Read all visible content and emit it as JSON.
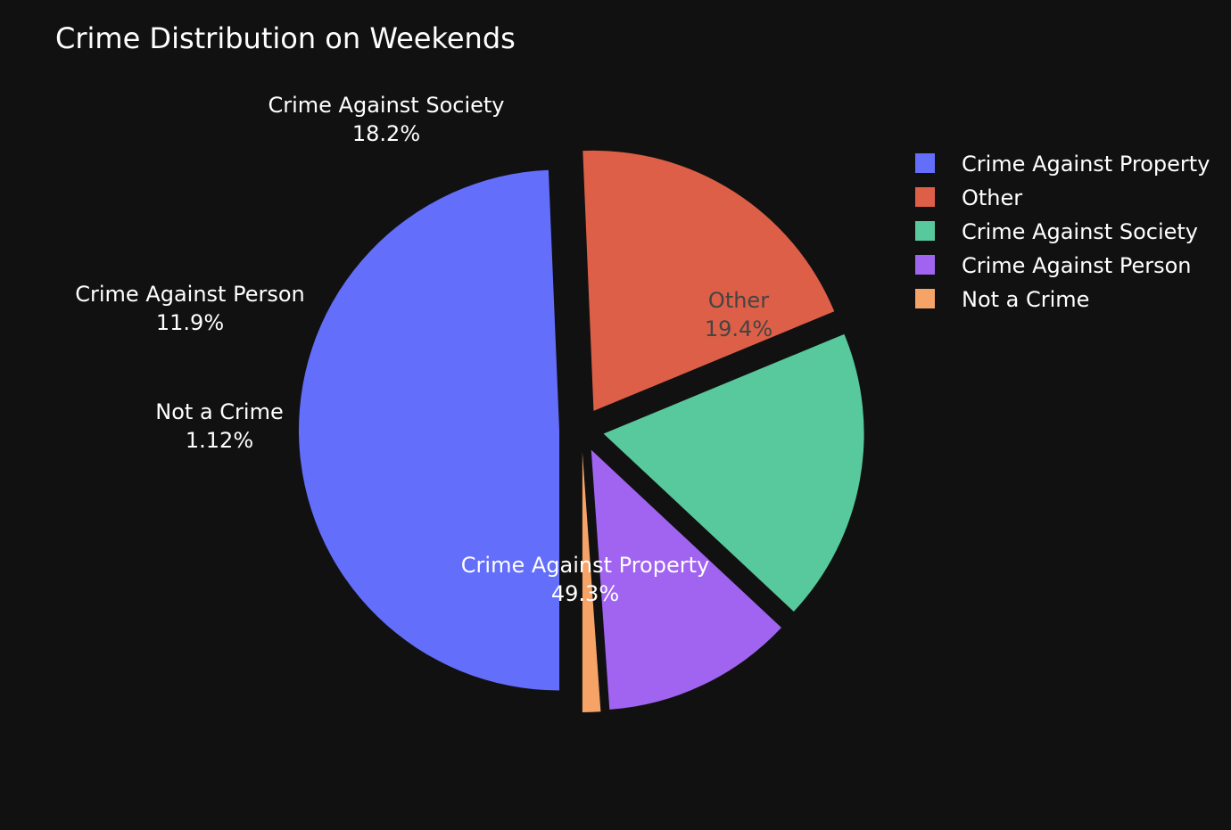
{
  "chart_data": {
    "type": "pie",
    "title": "Crime Distribution on Weekends",
    "slices": [
      {
        "label": "Crime Against Property",
        "percent_text": "49.3%",
        "value": 49.3,
        "color": "#636efa",
        "text_color": "#ffffff",
        "text_inside": true
      },
      {
        "label": "Other",
        "percent_text": "19.4%",
        "value": 19.4,
        "color": "#dd5f47",
        "text_color": "#444444",
        "text_inside": true
      },
      {
        "label": "Crime Against Society",
        "percent_text": "18.2%",
        "value": 18.2,
        "color": "#58c99c",
        "text_color": "#ffffff",
        "text_inside": false
      },
      {
        "label": "Crime Against Person",
        "percent_text": "11.9%",
        "value": 11.9,
        "color": "#a064f0",
        "text_color": "#ffffff",
        "text_inside": false
      },
      {
        "label": "Not a Crime",
        "percent_text": "1.12%",
        "value": 1.12,
        "color": "#f5a367",
        "text_color": "#ffffff",
        "text_inside": false
      }
    ],
    "legend": {
      "position": "top-right",
      "entries": [
        "Crime Against Property",
        "Other",
        "Crime Against Society",
        "Crime Against Person",
        "Not a Crime"
      ]
    },
    "background": "#111111",
    "exploded": true
  }
}
